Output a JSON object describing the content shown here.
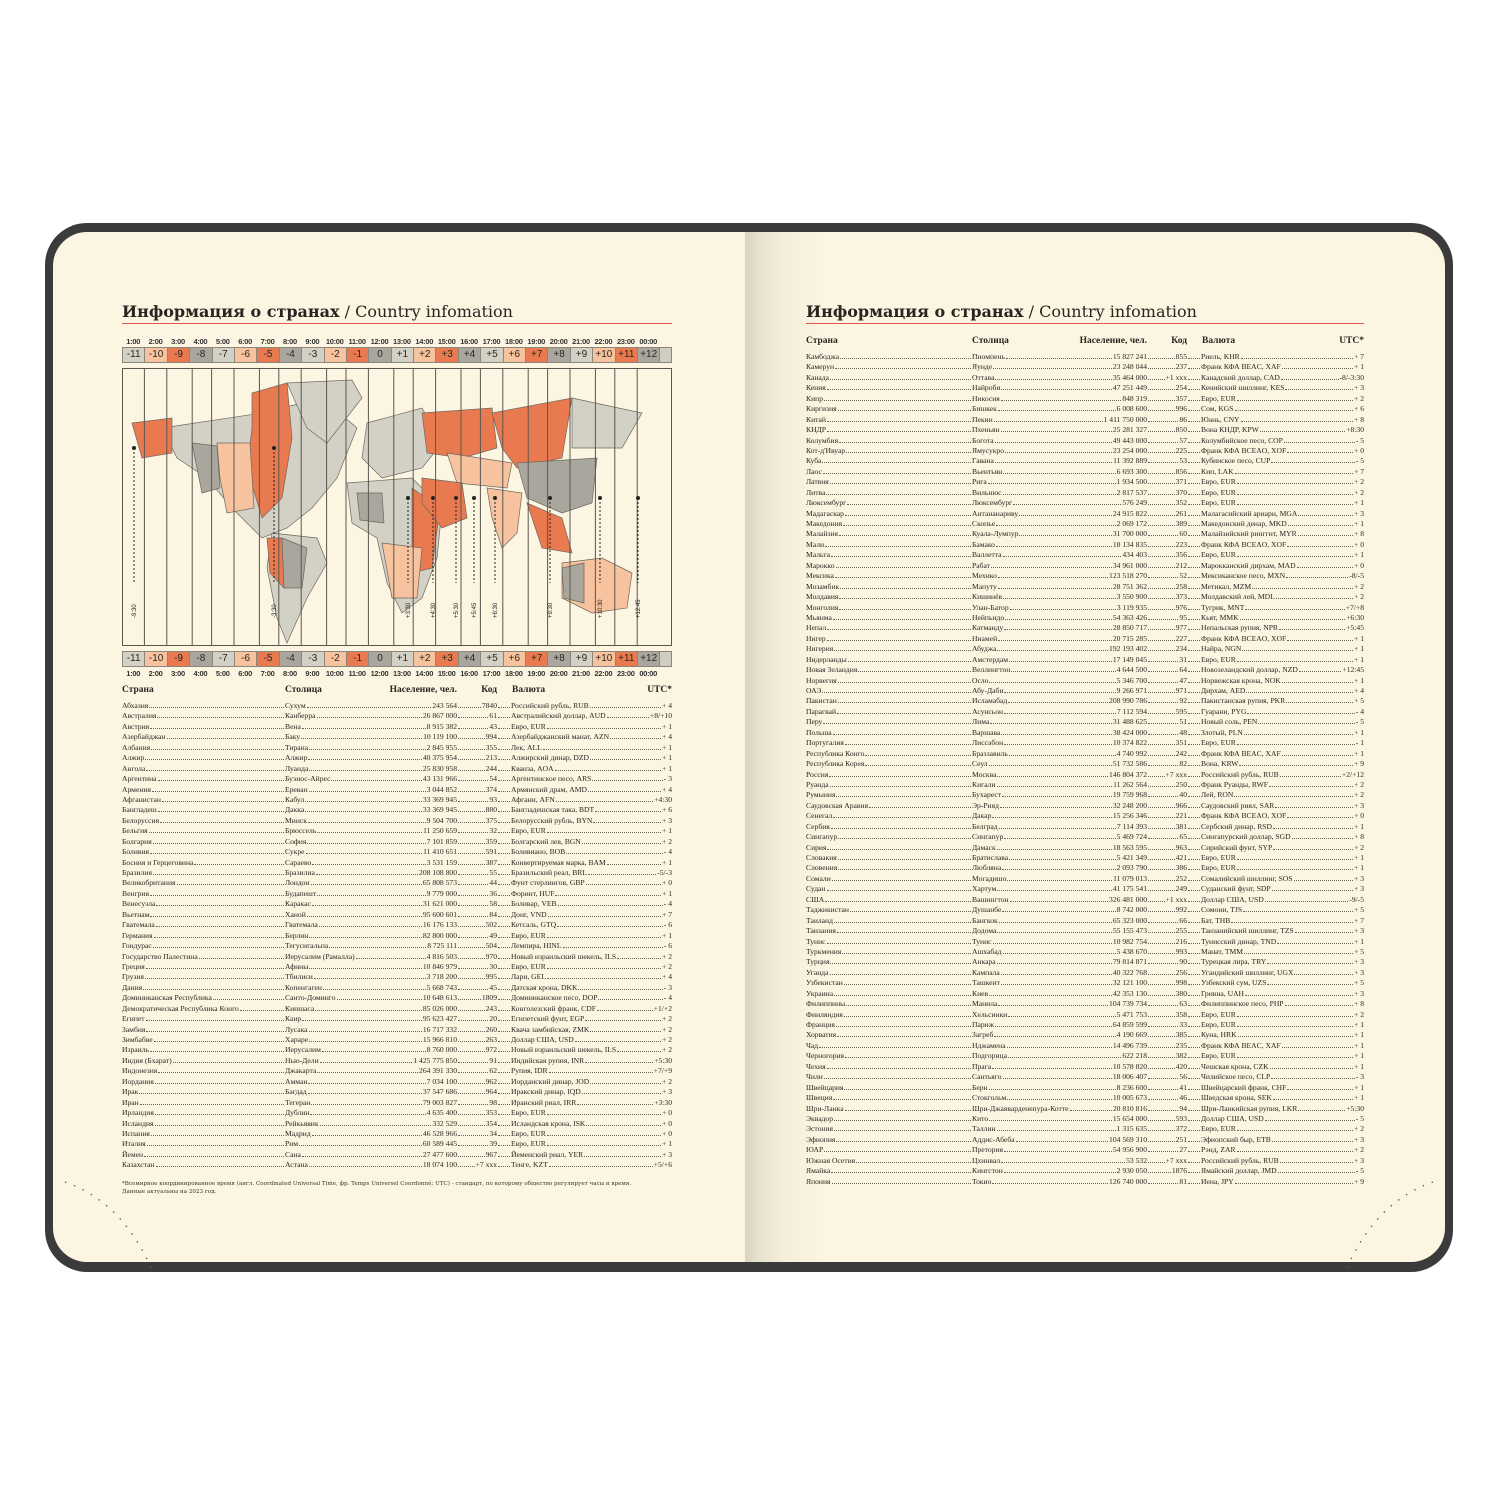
{
  "title_bold": "Информация о странах",
  "title_sub": "/ Country infomation",
  "colors": {
    "cover": "#3b3b3b",
    "paper": "#fcf5e2",
    "accent": "#e2574a",
    "orange": "#e97a50",
    "peach": "#f7c29e",
    "light_gray": "#d3d1c5",
    "dark_gray": "#a9a79d"
  },
  "timezones": {
    "hours": [
      "1:00",
      "2:00",
      "3:00",
      "4:00",
      "5:00",
      "6:00",
      "7:00",
      "8:00",
      "9:00",
      "10:00",
      "11:00",
      "12:00",
      "13:00",
      "14:00",
      "15:00",
      "16:00",
      "17:00",
      "18:00",
      "19:00",
      "20:00",
      "21:00",
      "22:00",
      "23:00",
      "00:00"
    ],
    "offsets": [
      "-11",
      "-10",
      "-9",
      "-8",
      "-7",
      "-6",
      "-5",
      "-4",
      "-3",
      "-2",
      "-1",
      "0",
      "+1",
      "+2",
      "+3",
      "+4",
      "+5",
      "+6",
      "+7",
      "+8",
      "+9",
      "+10",
      "+11",
      "+12"
    ],
    "color_cycle": [
      "light_gray",
      "peach",
      "orange",
      "dark_gray"
    ]
  },
  "map_labels": [
    "-9:30",
    "-3:30",
    "+3:30",
    "+4:30",
    "+5:30",
    "+5:45",
    "+6:30",
    "+9:30",
    "+10:30",
    "+12:45"
  ],
  "headers": {
    "country": "Страна",
    "capital": "Столица",
    "population": "Население, чел.",
    "code": "Код",
    "currency": "Валюта",
    "utc": "UTC*"
  },
  "left_rows": [
    [
      "Абхазия",
      "Сухум",
      "243 564",
      "7840",
      "Российский рубль, RUB",
      "+ 4"
    ],
    [
      "Австралия",
      "Канберра",
      "26 867 000",
      "61",
      "Австралийский доллар, AUD",
      "+8/+10"
    ],
    [
      "Австрия",
      "Вена",
      "8 915 382",
      "43",
      "Евро, EUR",
      "+ 1"
    ],
    [
      "Азербайджан",
      "Баку",
      "10 119 100",
      "994",
      "Азербайджанский манат, AZN",
      "+ 4"
    ],
    [
      "Албания",
      "Тирана",
      "2 845 955",
      "355",
      "Лек, ALL",
      "+ 1"
    ],
    [
      "Алжир",
      "Алжир",
      "40 375 954",
      "213",
      "Алжирский динар, DZD",
      "+ 1"
    ],
    [
      "Ангола",
      "Луанда",
      "25 830 958",
      "244",
      "Кванза, AOA",
      "+ 1"
    ],
    [
      "Аргентина",
      "Буэнос-Айрес",
      "43 131 966",
      "54",
      "Аргентинское песо, ARS",
      "- 3"
    ],
    [
      "Армения",
      "Ереван",
      "3 044 852",
      "374",
      "Армянский драм, AMD",
      "+ 4"
    ],
    [
      "Афганистан",
      "Кабул",
      "33 369 945",
      "93",
      "Афгани, AFN",
      "+4:30"
    ],
    [
      "Бангладеш",
      "Дакка",
      "33 369 945",
      "880",
      "Бангладешская така, BDT",
      "+ 6"
    ],
    [
      "Белоруссия",
      "Минск",
      "9 504 700",
      "375",
      "Белорусский рубль, BYN",
      "+ 3"
    ],
    [
      "Бельгия",
      "Брюссель",
      "11 250 659",
      "32",
      "Евро, EUR",
      "+ 1"
    ],
    [
      "Болгария",
      "София",
      "7 101 859",
      "359",
      "Болгарский лев, BGN",
      "+ 2"
    ],
    [
      "Боливия",
      "Сукре",
      "11 410 651",
      "591",
      "Боливиано, BOB",
      "- 4"
    ],
    [
      "Босния и Герцеговина",
      "Сараево",
      "3 531 159",
      "387",
      "Конвертируемая марка, BAM",
      "+ 1"
    ],
    [
      "Бразилия",
      "Бразилиа",
      "208 108 800",
      "55",
      "Бразильский реал, BRL",
      "-5/-3"
    ],
    [
      "Великобритания",
      "Лондон",
      "65 808 573",
      "44",
      "Фунт стерлингов, GBP",
      "+ 0"
    ],
    [
      "Венгрия",
      "Будапешт",
      "9 779 000",
      "36",
      "Форинт, HUF",
      "+ 1"
    ],
    [
      "Венесуэла",
      "Каракас",
      "31 621 000",
      "58",
      "Боливар, VEB",
      "- 4"
    ],
    [
      "Вьетнам",
      "Ханой",
      "95 600 601",
      "84",
      "Донг, VND",
      "+ 7"
    ],
    [
      "Гватемала",
      "Гватемала",
      "16 176 133",
      "502",
      "Кетсаль, GTQ",
      "- 6"
    ],
    [
      "Германия",
      "Берлин",
      "82 800 000",
      "49",
      "Евро, EUR",
      "+ 1"
    ],
    [
      "Гондурас",
      "Тегусигальпа",
      "8 725 111",
      "504",
      "Лемпира, HINL",
      "- 6"
    ],
    [
      "Государство Палестина",
      "Иерусалим (Рамалла)",
      "4 816 503",
      "970",
      "Новый израильский шекель, ILS",
      "+ 2"
    ],
    [
      "Греция",
      "Афины",
      "10 846 979",
      "30",
      "Евро, EUR",
      "+ 2"
    ],
    [
      "Грузия",
      "Тбилиси",
      "3 718 200",
      "995",
      "Лари, GEL",
      "+ 4"
    ],
    [
      "Дания",
      "Копенгаген",
      "5 668 743",
      "45",
      "Датская крона, DKK",
      "- 3"
    ],
    [
      "Доминиканская Республика",
      "Санто-Доминго",
      "10 648 613",
      "1809",
      "Доминиканское песо, DOP",
      "- 4"
    ],
    [
      "Демократическая Республика Конго",
      "Киншаса",
      "85 026 000",
      "243",
      "Конголезский франк, CDF",
      "+1/+2"
    ],
    [
      "Египет",
      "Каир",
      "95 623 427",
      "20",
      "Египетский фунт, EGP",
      "+ 2"
    ],
    [
      "Замбия",
      "Лусака",
      "16 717 332",
      "260",
      "Квача замбийская, ZMK",
      "+ 2"
    ],
    [
      "Зимбабве",
      "Хараре",
      "15 966 810",
      "263",
      "Доллар США, USD",
      "+ 2"
    ],
    [
      "Израиль",
      "Иерусалим",
      "8 760 000",
      "972",
      "Новый израильский шекель, ILS",
      "+ 2"
    ],
    [
      "Индия (Бхарат)",
      "Нью-Дели",
      "1 425 775 850",
      "91",
      "Индийская рупия, INR",
      "+5:30"
    ],
    [
      "Индонезия",
      "Джакарта",
      "264 391 330",
      "62",
      "Рупия, IDR",
      "+7/+9"
    ],
    [
      "Иордания",
      "Амман",
      "7 034 100",
      "962",
      "Иорданский динар, JOD",
      "+ 2"
    ],
    [
      "Ирак",
      "Багдад",
      "37 547 686",
      "964",
      "Иракский динар, IQD",
      "+ 3"
    ],
    [
      "Иран",
      "Тегеран",
      "79 003 827",
      "98",
      "Иранский риал, IRR",
      "+3:30"
    ],
    [
      "Ирландия",
      "Дублин",
      "4 635 400",
      "353",
      "Евро, EUR",
      "+ 0"
    ],
    [
      "Исландия",
      "Рейкьявик",
      "332 529",
      "354",
      "Исландская крона, ISK",
      "+ 0"
    ],
    [
      "Испания",
      "Мадрид",
      "46 528 966",
      "34",
      "Евро, EUR",
      "+ 0"
    ],
    [
      "Италия",
      "Рим",
      "60 589 445",
      "39",
      "Евро, EUR",
      "+ 1"
    ],
    [
      "Йемен",
      "Сана",
      "27 477 600",
      "967",
      "Йеменский риал, YER",
      "+ 3"
    ],
    [
      "Казахстан",
      "Астана",
      "18 074 100",
      "+7 xxx",
      "Тенге, KZT",
      "+5/+6"
    ]
  ],
  "footnote_1": "*Всемирное координированное время (англ. Coordinated Universal Time, фр. Temps Universel Coordonné; UTC) - стандарт, по которому общество регулирует часы и время.",
  "footnote_2": "Данные актуальны на 2023 год.",
  "right_rows": [
    [
      "Камбоджа",
      "Пномпень",
      "15 827 241",
      "855",
      "Риель, KHR",
      "+ 7"
    ],
    [
      "Камерун",
      "Яунде",
      "23 248 044",
      "237",
      "Франк КФА BEAC, XAF",
      "+ 1"
    ],
    [
      "Канада",
      "Оттава",
      "35 464 000",
      "+1 xxx",
      "Канадский доллар, CAD",
      "-8/-3:30"
    ],
    [
      "Кения",
      "Найроби",
      "47 251 449",
      "254",
      "Кенийский шиллинг, KES",
      "+ 3"
    ],
    [
      "Кипр",
      "Никосия",
      "848 319",
      "357",
      "Евро, EUR",
      "+ 2"
    ],
    [
      "Киргизия",
      "Бишкек",
      "6 008 600",
      "996",
      "Сом, KGS",
      "+ 6"
    ],
    [
      "Китай",
      "Пекин",
      "1 411 750 000",
      "86",
      "Юань, CNY",
      "+ 8"
    ],
    [
      "КНДР",
      "Пхеньян",
      "25 281 327",
      "850",
      "Вона КНДР, KPW",
      "+8:30"
    ],
    [
      "Колумбия",
      "Богота",
      "49 443 000",
      "57",
      "Колумбийское песо, COP",
      "- 5"
    ],
    [
      "Кот-д'Ивуар",
      "Ямусукро",
      "23 254 000",
      "225",
      "Франк КФА BCEAO, XOF",
      "+ 0"
    ],
    [
      "Куба",
      "Гавана",
      "11 392 889",
      "53",
      "Кубинское песо, CUP",
      "- 5"
    ],
    [
      "Лаос",
      "Вьентьян",
      "6 693 300",
      "856",
      "Кип, LAK",
      "+ 7"
    ],
    [
      "Латвия",
      "Рига",
      "1 934 500",
      "371",
      "Евро, EUR",
      "+ 2"
    ],
    [
      "Литва",
      "Вильнюс",
      "2 817 537",
      "370",
      "Евро, EUR",
      "+ 2"
    ],
    [
      "Люксембург",
      "Люксембург",
      "576 249",
      "352",
      "Евро, EUR",
      "+ 1"
    ],
    [
      "Мадагаскар",
      "Антананариву",
      "24 915 822",
      "261",
      "Малагасийский ариари, MGA",
      "+ 3"
    ],
    [
      "Македония",
      "Скопье",
      "2 069 172",
      "389",
      "Македонский денар, MKD",
      "+ 1"
    ],
    [
      "Малайзия",
      "Куала-Лумпур",
      "31 700 000",
      "60",
      "Малайзийский ринггит, MYR",
      "+ 8"
    ],
    [
      "Мали",
      "Бамако",
      "18 134 835",
      "223",
      "Франк КФА BCEAO, XOF",
      "+ 0"
    ],
    [
      "Мальта",
      "Валлетта",
      "434 403",
      "356",
      "Евро, EUR",
      "+ 1"
    ],
    [
      "Марокко",
      "Рабат",
      "34 961 000",
      "212",
      "Марокканский дирхам, MAD",
      "+ 0"
    ],
    [
      "Мексика",
      "Мехико",
      "123 518 270",
      "52",
      "Мексиканское песо, MXN",
      "-8/-5"
    ],
    [
      "Мозамбик",
      "Мапуту",
      "28 751 362",
      "258",
      "Метикал, MZM",
      "+ 2"
    ],
    [
      "Молдавия",
      "Кишинёв",
      "3 550 900",
      "373",
      "Молдавский лей, MDL",
      "+ 2"
    ],
    [
      "Монголия",
      "Улан-Батор",
      "3 119 935",
      "976",
      "Тугрик, MNT",
      "+7/+8"
    ],
    [
      "Мьянма",
      "Нейпьидо",
      "54 363 426",
      "95",
      "Кьят, MMK",
      "+6:30"
    ],
    [
      "Непал",
      "Катманду",
      "28 850 717",
      "977",
      "Непальская рупия, NPR",
      "+5:45"
    ],
    [
      "Нигер",
      "Ниамей",
      "20 715 285",
      "227",
      "Франк КФА BCEAO, XOF",
      "+ 1"
    ],
    [
      "Нигерия",
      "Абуджа",
      "192 193 402",
      "234",
      "Найра, NGN",
      "+ 1"
    ],
    [
      "Нидерланды",
      "Амстердам",
      "17 149 045",
      "31",
      "Евро, EUR",
      "+ 1"
    ],
    [
      "Новая Зеландия",
      "Веллингтон",
      "4 644 500",
      "64",
      "Новозеландский доллар, NZD",
      "+12:45"
    ],
    [
      "Норвегия",
      "Осло",
      "5 346 700",
      "47",
      "Норвежская крона, NOK",
      "+ 1"
    ],
    [
      "ОАЭ",
      "Абу-Даби",
      "9 266 971",
      "971",
      "Дирхам, AED",
      "+ 4"
    ],
    [
      "Пакистан",
      "Исламабад",
      "208 990 786",
      "92",
      "Пакистанская рупия, PKR",
      "+ 5"
    ],
    [
      "Парагвай",
      "Асунсьон",
      "7 112 594",
      "595",
      "Гуарани, PYG",
      "- 4"
    ],
    [
      "Перу",
      "Лима",
      "31 488 625",
      "51",
      "Новый соль, PEN",
      "- 5"
    ],
    [
      "Польша",
      "Варшава",
      "38 424 000",
      "48",
      "Злотый, PLN",
      "+ 1"
    ],
    [
      "Португалия",
      "Лиссабон",
      "10 374 822",
      "351",
      "Евро, EUR",
      "- 1"
    ],
    [
      "Республика Конго",
      "Браззавиль",
      "4 740 992",
      "242",
      "Франк КФА BEAC, XAF",
      "+ 1"
    ],
    [
      "Республика Корея",
      "Сеул",
      "51 732 586",
      "82",
      "Вона, KRW",
      "+ 9"
    ],
    [
      "Россия",
      "Москва",
      "146 804 372",
      "+7 xxx",
      "Российский рубль, RUB",
      "+2/+12"
    ],
    [
      "Руанда",
      "Кигали",
      "11 262 564",
      "250",
      "Франк Руанды, RWF",
      "+ 2"
    ],
    [
      "Румыния",
      "Бухарест",
      "19 759 968",
      "40",
      "Лей, RON",
      "+ 2"
    ],
    [
      "Саудовская Аравия",
      "Эр-Рияд",
      "32 248 200",
      "966",
      "Саудовский риял, SAR",
      "+ 3"
    ],
    [
      "Сенегал",
      "Дакар",
      "15 256 346",
      "221",
      "Франк КФА BCEAO, XOF",
      "+ 0"
    ],
    [
      "Сербия",
      "Белград",
      "7 114 393",
      "381",
      "Сербский динар, RSD",
      "+ 1"
    ],
    [
      "Сингапур",
      "Сингапур",
      "5 469 724",
      "65",
      "Сингапурский доллар, SGD",
      "+ 8"
    ],
    [
      "Сирия",
      "Дамаск",
      "18 563 595",
      "963",
      "Сирийский фунт, SYP",
      "+ 2"
    ],
    [
      "Словакия",
      "Братислава",
      "5 421 349",
      "421",
      "Евро, EUR",
      "+ 1"
    ],
    [
      "Словения",
      "Любляна",
      "2 093 790",
      "386",
      "Евро, EUR",
      "+ 1"
    ],
    [
      "Сомали",
      "Могадишо",
      "11 079 013",
      "252",
      "Сомалийский шиллинг, SOS",
      "+ 3"
    ],
    [
      "Судан",
      "Хартум",
      "41 175 541",
      "249",
      "Суданский фунт, SDP",
      "+ 3"
    ],
    [
      "США",
      "Вашингтон",
      "326 481 000",
      "+1 xxx",
      "Доллар США, USD",
      "-9/-5"
    ],
    [
      "Таджикистан",
      "Душанбе",
      "8 742 000",
      "992",
      "Сомони, TJS",
      "+ 5"
    ],
    [
      "Таиланд",
      "Бангкок",
      "65 323 000",
      "66",
      "Бат, THB",
      "+ 7"
    ],
    [
      "Танзания",
      "Додома",
      "55 155 473",
      "255",
      "Танзанийский шиллинг, TZS",
      "+ 3"
    ],
    [
      "Тунис",
      "Тунис",
      "10 982 754",
      "216",
      "Тунисский динар, TND",
      "+ 1"
    ],
    [
      "Туркмения",
      "Ашхабад",
      "5 438 670",
      "993",
      "Манат, TMM",
      "+ 5"
    ],
    [
      "Турция",
      "Анкара",
      "79 814 871",
      "90",
      "Турецкая лира, TRY",
      "+ 3"
    ],
    [
      "Уганда",
      "Кампала",
      "40 322 768",
      "256",
      "Угандийский шиллинг, UGX",
      "+ 3"
    ],
    [
      "Узбекистан",
      "Ташкент",
      "32 121 100",
      "998",
      "Узбекский сум, UZS",
      "+ 5"
    ],
    [
      "Украина",
      "Киев",
      "42 353 130",
      "380",
      "Гривна, UAH",
      "+ 3"
    ],
    [
      "Филиппины",
      "Манила",
      "104 739 734",
      "63",
      "Филиппинское песо, PHP",
      "+ 8"
    ],
    [
      "Финляндия",
      "Хельсинки",
      "5 471 753",
      "358",
      "Евро, EUR",
      "+ 2"
    ],
    [
      "Франция",
      "Париж",
      "64 859 599",
      "33",
      "Евро, EUR",
      "+ 1"
    ],
    [
      "Хорватия",
      "Загреб",
      "4 190 669",
      "385",
      "Куна, HRK",
      "+ 1"
    ],
    [
      "Чад",
      "Нджамена",
      "14 496 739",
      "235",
      "Франк КФА BEAC, XAF",
      "+ 1"
    ],
    [
      "Черногория",
      "Подгорица",
      "622 218",
      "382",
      "Евро, EUR",
      "+ 1"
    ],
    [
      "Чехия",
      "Прага",
      "10 578 820",
      "420",
      "Чешская крона, CZK",
      "+ 1"
    ],
    [
      "Чили",
      "Сантьяго",
      "18 006 407",
      "56",
      "Чилийское песо, CLP",
      "- 3"
    ],
    [
      "Швейцария",
      "Берн",
      "8 236 600",
      "41",
      "Швейцарский франк, CHF",
      "+ 1"
    ],
    [
      "Швеция",
      "Стокгольм",
      "10 005 673",
      "46",
      "Шведская крона, SEK",
      "+ 1"
    ],
    [
      "Шри-Ланка",
      "Шри-Джаяварденепура-Котте",
      "20 810 816",
      "94",
      "Шри-Ланкийская рупия, LKR",
      "+5:30"
    ],
    [
      "Эквадор",
      "Кито",
      "15 654 000",
      "593",
      "Доллар США, USD",
      "- 5"
    ],
    [
      "Эстония",
      "Таллин",
      "1 315 635",
      "372",
      "Евро, EUR",
      "+ 2"
    ],
    [
      "Эфиопия",
      "Аддис-Абеба",
      "104 569 310",
      "251",
      "Эфиопский быр, ETB",
      "+ 3"
    ],
    [
      "ЮАР",
      "Претория",
      "54 956 900",
      "27",
      "Рэнд, ZAR",
      "+ 2"
    ],
    [
      "Южная Осетия",
      "Цхинвал",
      "53 532",
      "+7 xxx",
      "Российский рубль, RUB",
      "+ 3"
    ],
    [
      "Ямайка",
      "Кингстон",
      "2 930 050",
      "1876",
      "Ямайский доллар, JMD",
      "- 5"
    ],
    [
      "Япония",
      "Токио",
      "126 740 000",
      "81",
      "Иена, JPY",
      "+ 9"
    ]
  ]
}
